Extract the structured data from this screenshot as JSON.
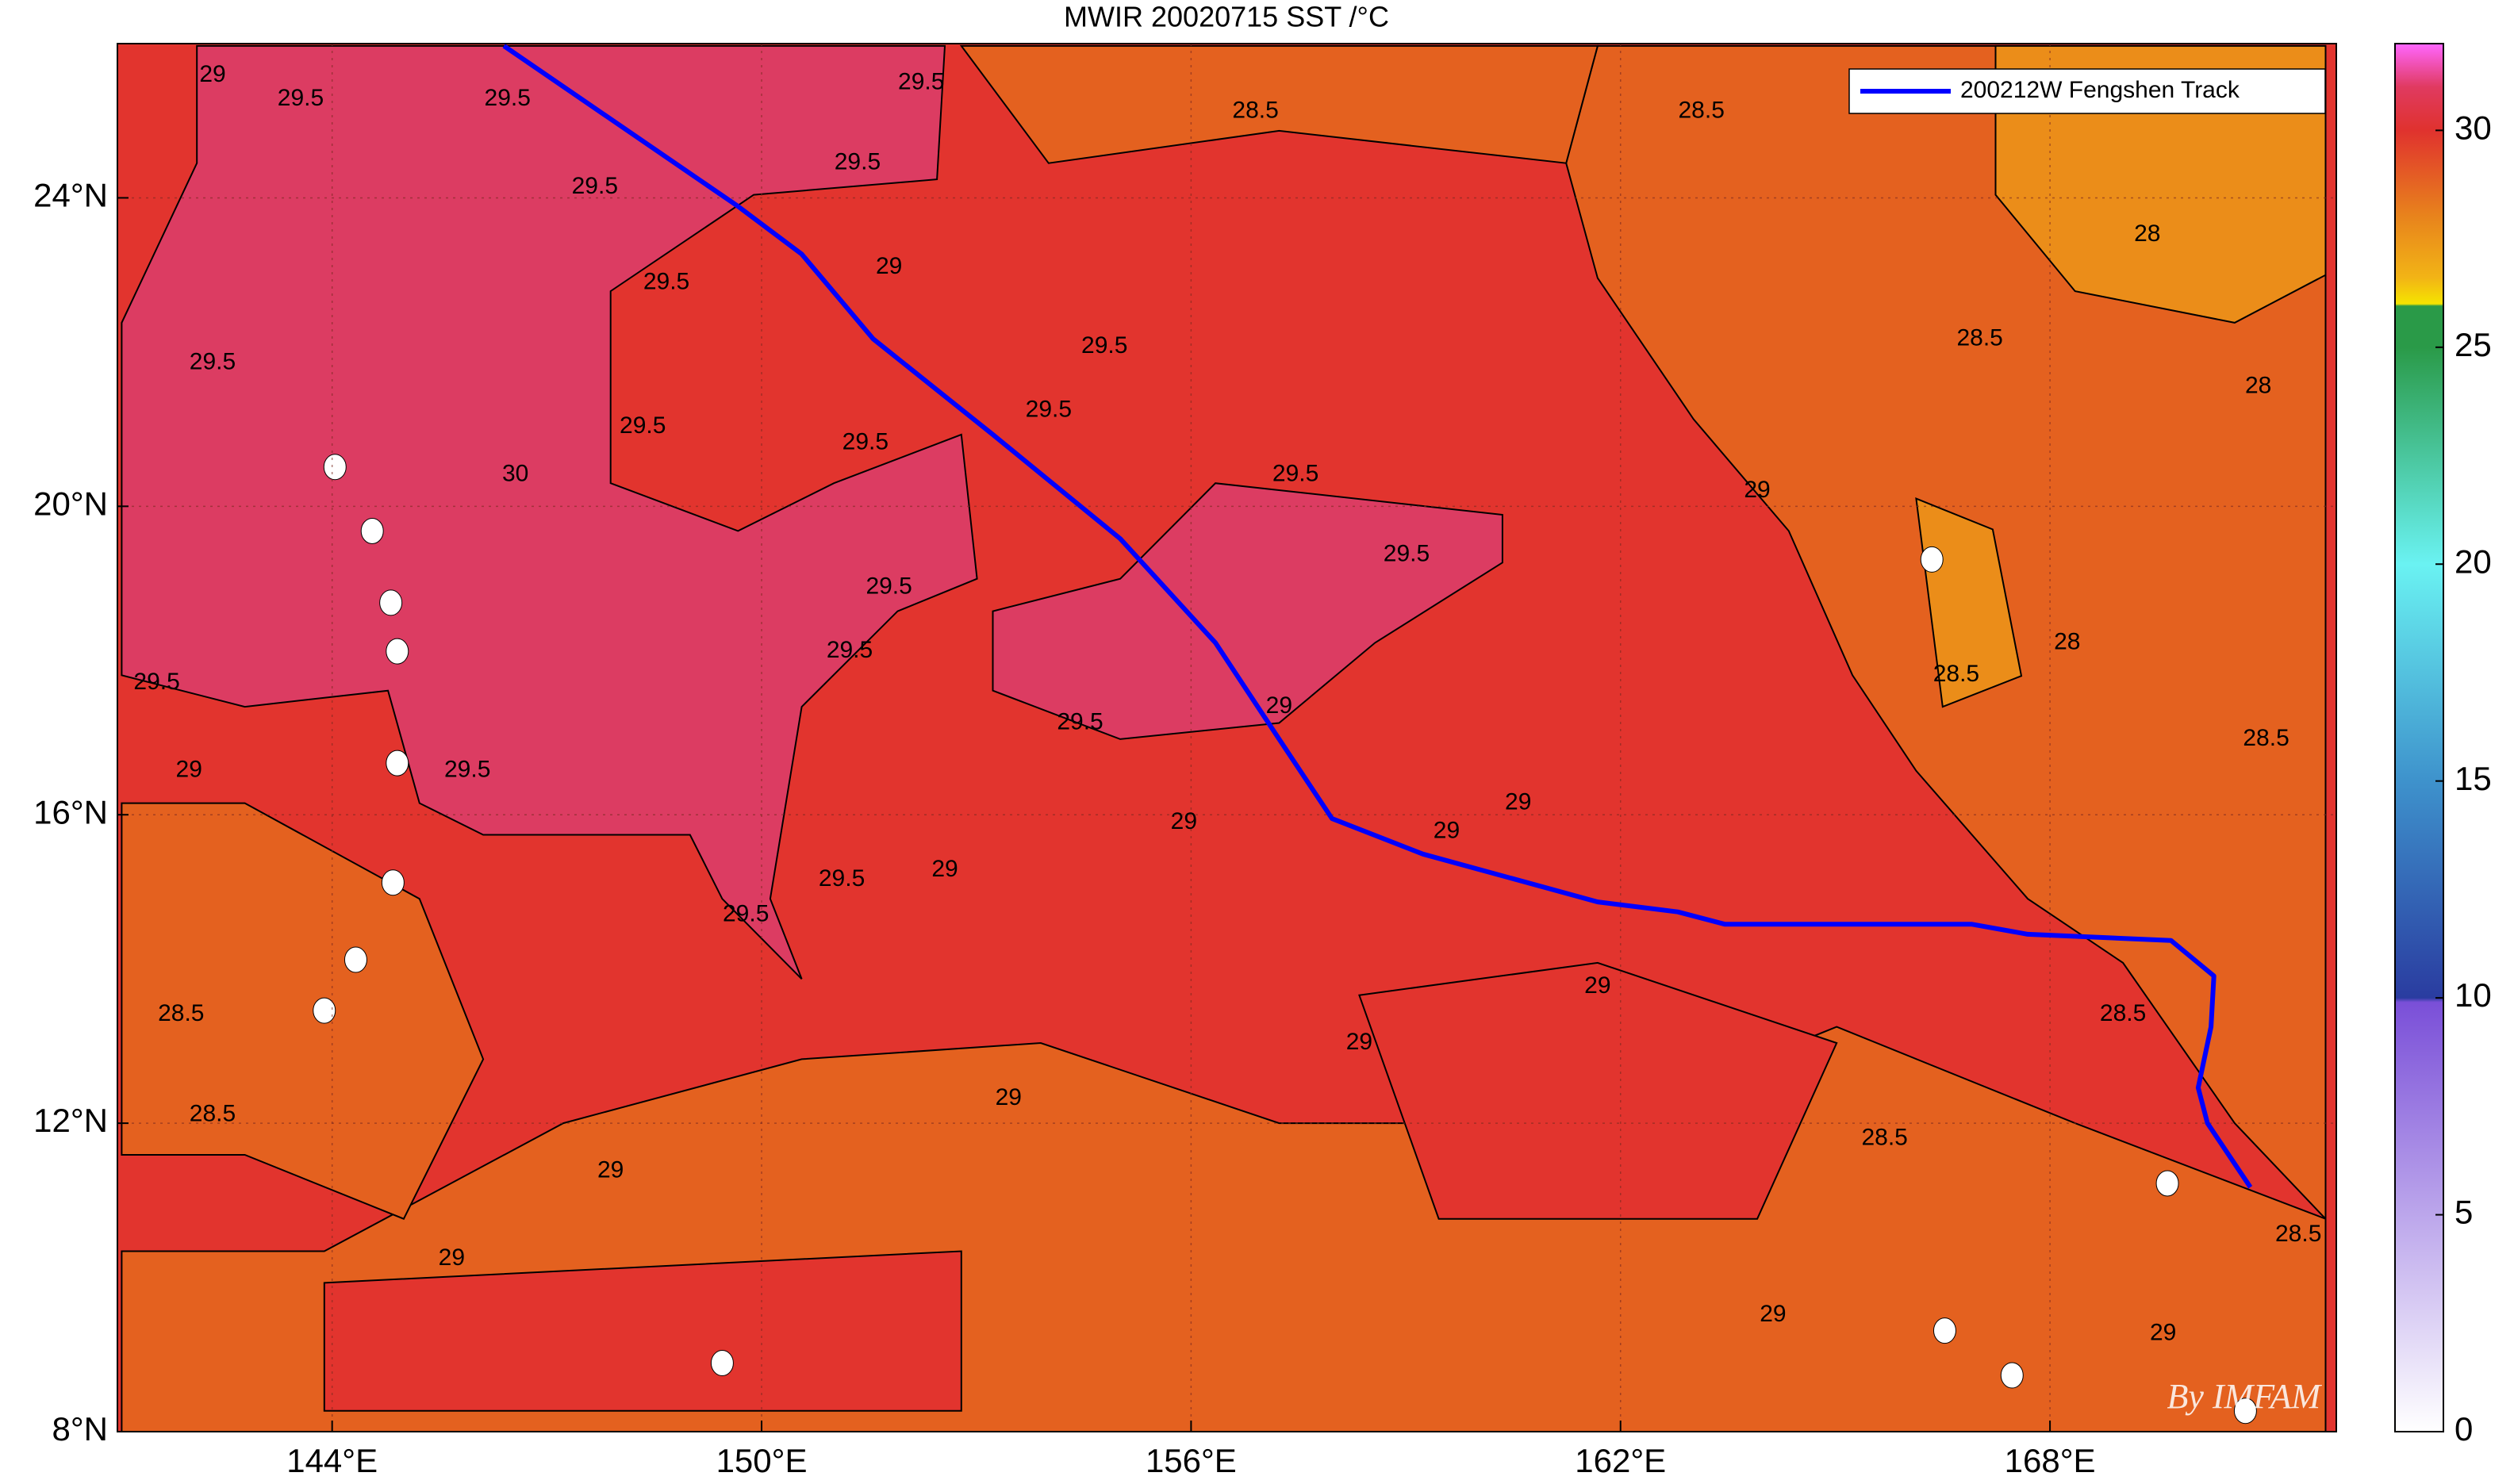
{
  "chart_data": {
    "type": "map",
    "title": "MWIR 20020715 SST /°C",
    "xlim": [
      141,
      172
    ],
    "ylim": [
      8,
      26
    ],
    "xticks": [
      {
        "value": 144,
        "label": "144°E"
      },
      {
        "value": 150,
        "label": "150°E"
      },
      {
        "value": 156,
        "label": "156°E"
      },
      {
        "value": 162,
        "label": "162°E"
      },
      {
        "value": 168,
        "label": "168°E"
      }
    ],
    "yticks": [
      {
        "value": 8,
        "label": "8°N"
      },
      {
        "value": 12,
        "label": "12°N"
      },
      {
        "value": 16,
        "label": "16°N"
      },
      {
        "value": 20,
        "label": "20°N"
      },
      {
        "value": 24,
        "label": "24°N"
      }
    ],
    "grid": true,
    "background_color": "#e2342e",
    "regions": [
      {
        "color": "#e4611f",
        "lon": [
          141.06,
          171.85,
          171.85,
          168.35,
          165.02,
          161.68,
          157.23,
          153.9,
          150.56,
          147.23,
          143.89,
          141.06
        ],
        "lat": [
          8,
          8,
          10.76,
          12.0,
          13.25,
          12.0,
          12.0,
          13.04,
          12.83,
          12.0,
          10.34,
          10.34
        ]
      },
      {
        "color": "#e4611f",
        "lon": [
          161.68,
          171.85,
          171.85,
          170.58,
          169.02,
          167.69,
          166.13,
          165.24,
          164.35,
          163.02,
          161.68,
          161.24
        ],
        "lat": [
          25.97,
          25.97,
          10.76,
          12.0,
          14.08,
          14.91,
          16.57,
          17.81,
          19.68,
          21.13,
          22.96,
          24.45
        ]
      },
      {
        "color": "#e4611f",
        "lon": [
          152.79,
          161.68,
          161.24,
          157.23,
          154.01
        ],
        "lat": [
          25.97,
          25.97,
          24.45,
          24.87,
          24.45
        ]
      },
      {
        "color": "#eb8d19",
        "lon": [
          167.24,
          171.85,
          171.85,
          170.58,
          168.35,
          167.24
        ],
        "lat": [
          25.97,
          25.97,
          23.0,
          22.38,
          22.79,
          24.04
        ]
      },
      {
        "color": "#eb8d19",
        "lon": [
          166.13,
          167.2,
          167.6,
          166.5
        ],
        "lat": [
          20.1,
          19.7,
          17.8,
          17.4
        ]
      },
      {
        "color": "#e4611f",
        "lon": [
          141.06,
          142.78,
          145.22,
          146.11,
          145.0,
          142.78,
          141.06
        ],
        "lat": [
          16.15,
          16.15,
          14.91,
          12.83,
          10.76,
          11.59,
          11.59
        ]
      },
      {
        "color": "#e2342e",
        "lon": [
          143.89,
          152.79,
          152.79,
          143.89
        ],
        "lat": [
          9.93,
          10.34,
          8.27,
          8.27
        ]
      },
      {
        "color": "#e2342e",
        "lon": [
          158.35,
          161.68,
          165.02,
          163.91,
          159.46
        ],
        "lat": [
          13.66,
          14.08,
          13.04,
          10.76,
          10.76
        ]
      },
      {
        "color": "#dc3c62",
        "lon": [
          142.11,
          152.56,
          152.45,
          149.89,
          147.89,
          147.89,
          149.67,
          151.01,
          152.79,
          153.01,
          151.9,
          150.56,
          150.12,
          150.56,
          149.45,
          149.0,
          146.11,
          145.22,
          144.78,
          142.78,
          141.06,
          141.06,
          142.11
        ],
        "lat": [
          25.97,
          25.97,
          24.24,
          24.04,
          22.79,
          20.3,
          19.68,
          20.3,
          20.93,
          19.06,
          18.64,
          17.4,
          14.91,
          13.87,
          14.91,
          15.74,
          15.74,
          16.15,
          17.61,
          17.4,
          17.81,
          22.38,
          24.45
        ]
      },
      {
        "color": "#dc3c62",
        "lon": [
          153.23,
          155.01,
          156.34,
          160.35,
          160.35,
          158.57,
          157.23,
          155.01,
          153.23
        ],
        "lat": [
          18.64,
          19.06,
          20.3,
          19.89,
          19.27,
          18.23,
          17.19,
          16.98,
          17.61
        ]
      }
    ],
    "islands": {
      "lon": [
        144.04,
        144.56,
        144.82,
        144.91,
        144.91,
        144.85,
        144.33,
        143.89,
        149.45,
        166.35,
        169.64,
        166.53,
        167.47,
        170.73
      ],
      "lat": [
        20.51,
        19.68,
        18.75,
        18.12,
        16.67,
        15.12,
        14.12,
        13.46,
        8.89,
        19.31,
        11.22,
        9.31,
        8.73,
        8.27
      ]
    },
    "contour_labels": {
      "lon": [
        142.33,
        143.56,
        152.23,
        146.45,
        151.34,
        147.67,
        151.78,
        148.67,
        142.33,
        148.34,
        146.56,
        151.45,
        154.01,
        154.79,
        157.46,
        159.01,
        151.23,
        151.78,
        154.45,
        141.55,
        145.89,
        151.12,
        149.78,
        142.0,
        155.9,
        152.56,
        157.23,
        160.57,
        159.57,
        161.68,
        158.35,
        153.45,
        145.67,
        147.89,
        156.9,
        163.13,
        169.36,
        167.02,
        163.91,
        166.69,
        168.24,
        171.02,
        165.69,
        169.02,
        141.89,
        142.33,
        171.47,
        170.91,
        169.58,
        164.13
      ],
      "lat": [
        25.59,
        25.28,
        25.49,
        25.28,
        24.45,
        24.14,
        23.1,
        22.9,
        21.86,
        21.03,
        20.41,
        20.82,
        21.24,
        22.07,
        20.41,
        19.37,
        18.12,
        18.95,
        17.19,
        17.71,
        16.57,
        15.16,
        14.7,
        16.57,
        15.9,
        15.28,
        17.4,
        16.15,
        15.78,
        13.77,
        13.04,
        12.32,
        10.24,
        11.38,
        25.12,
        25.12,
        23.52,
        22.17,
        20.2,
        17.81,
        18.23,
        16.98,
        11.8,
        13.41,
        13.41,
        12.11,
        10.55,
        21.55,
        9.27,
        9.51
      ],
      "values": [
        29,
        29.5,
        29.5,
        29.5,
        29.5,
        29.5,
        29,
        29.5,
        29.5,
        29.5,
        30,
        29.5,
        29.5,
        29.5,
        29.5,
        29.5,
        29.5,
        29.5,
        29.5,
        29.5,
        29.5,
        29.5,
        29.5,
        29,
        29,
        29,
        29,
        29,
        29,
        29,
        29,
        29,
        29,
        29,
        28.5,
        28.5,
        28,
        28.5,
        29,
        28.5,
        28,
        28.5,
        28.5,
        28.5,
        28.5,
        28.5,
        28.5,
        28,
        29,
        29
      ]
    },
    "series": [
      {
        "name": "200212W Fengshen Track",
        "color": "#0000ff",
        "lon": [
          146.4,
          149.67,
          150.56,
          151.56,
          153.23,
          155.01,
          156.34,
          157.23,
          157.97,
          159.24,
          161.68,
          162.8,
          163.46,
          166.91,
          167.69,
          169.69,
          170.29,
          170.25,
          170.07,
          170.2,
          170.8
        ],
        "lat": [
          25.97,
          23.89,
          23.27,
          22.17,
          20.93,
          19.58,
          18.23,
          16.98,
          15.95,
          15.49,
          14.87,
          14.74,
          14.58,
          14.58,
          14.45,
          14.37,
          13.91,
          13.25,
          12.46,
          12.0,
          11.17
        ]
      }
    ],
    "legend": "upper right",
    "clim": [
      0,
      32
    ],
    "cticks": [
      0,
      5,
      10,
      15,
      20,
      25,
      30
    ],
    "colormap": [
      {
        "value": 0,
        "color": "#ffffff"
      },
      {
        "value": 9.9,
        "color": "#7a4fd8"
      },
      {
        "value": 10,
        "color": "#2a3ca0"
      },
      {
        "value": 15,
        "color": "#3e92cc"
      },
      {
        "value": 20,
        "color": "#6af2f2"
      },
      {
        "value": 25,
        "color": "#2a9a48"
      },
      {
        "value": 25.95,
        "color": "#2a9a48"
      },
      {
        "value": 26,
        "color": "#f5e400"
      },
      {
        "value": 26.6,
        "color": "#f2b416"
      },
      {
        "value": 28,
        "color": "#e8841c"
      },
      {
        "value": 30,
        "color": "#e0322e"
      },
      {
        "value": 31,
        "color": "#e03a60"
      },
      {
        "value": 32,
        "color": "#ff66ff"
      }
    ],
    "watermark": "By IMFAM"
  }
}
